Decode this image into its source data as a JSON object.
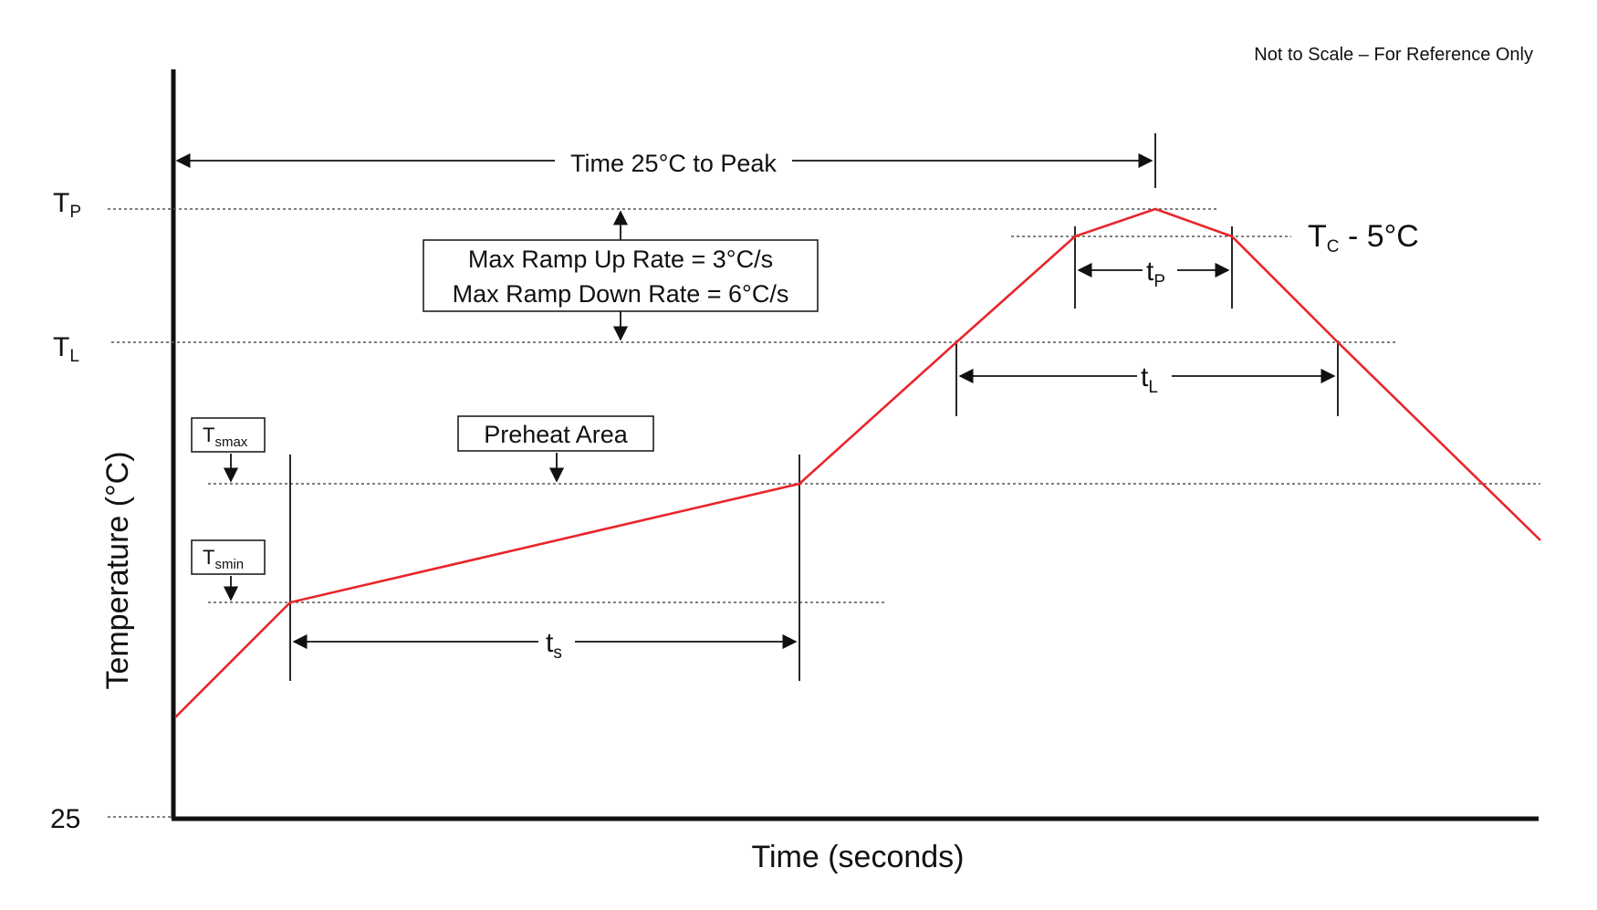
{
  "note": "Not to Scale – For Reference Only",
  "axes": {
    "x_label": "Time (seconds)",
    "y_label": "Temperature (°C)",
    "y_origin_label": "25"
  },
  "levels": {
    "tp": {
      "main": "T",
      "sub": "P"
    },
    "tl": {
      "main": "T",
      "sub": "L"
    },
    "tc": {
      "main": "T",
      "sub": "C",
      "suffix": " - 5°C"
    }
  },
  "boxes": {
    "tsmax": {
      "main": "T",
      "sub": "smax"
    },
    "tsmin": {
      "main": "T",
      "sub": "smin"
    },
    "preheat": "Preheat Area",
    "ramp_up": "Max Ramp Up Rate = 3°C/s",
    "ramp_down": "Max Ramp Down Rate = 6°C/s"
  },
  "intervals": {
    "time_to_peak": "Time 25°C to Peak",
    "ts": {
      "main": "t",
      "sub": "s"
    },
    "tl": {
      "main": "t",
      "sub": "L"
    },
    "tp": {
      "main": "t",
      "sub": "P"
    }
  },
  "colors": {
    "profile": "#e8262a",
    "ink": "#111111",
    "guide": "#555555"
  }
}
